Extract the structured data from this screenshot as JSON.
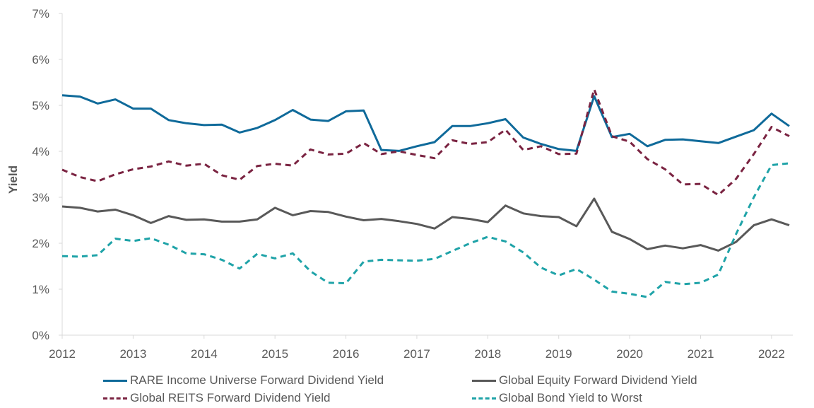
{
  "chart_data": {
    "type": "line",
    "ylabel": "Yield",
    "xlabel": "",
    "title": "",
    "xlim": [
      2012,
      2022.3
    ],
    "ylim": [
      0,
      7
    ],
    "x_ticks": [
      {
        "value": 2012,
        "label": "2012"
      },
      {
        "value": 2013,
        "label": "2013"
      },
      {
        "value": 2014,
        "label": "2014"
      },
      {
        "value": 2015,
        "label": "2015"
      },
      {
        "value": 2016,
        "label": "2016"
      },
      {
        "value": 2017,
        "label": "2017"
      },
      {
        "value": 2018,
        "label": "2018"
      },
      {
        "value": 2019,
        "label": "2019"
      },
      {
        "value": 2020,
        "label": "2020"
      },
      {
        "value": 2021,
        "label": "2021"
      },
      {
        "value": 2022,
        "label": "2022"
      }
    ],
    "y_ticks": [
      {
        "value": 0,
        "label": "0%"
      },
      {
        "value": 1,
        "label": "1%"
      },
      {
        "value": 2,
        "label": "2%"
      },
      {
        "value": 3,
        "label": "3%"
      },
      {
        "value": 4,
        "label": "4%"
      },
      {
        "value": 5,
        "label": "5%"
      },
      {
        "value": 6,
        "label": "6%"
      },
      {
        "value": 7,
        "label": "7%"
      }
    ],
    "grid": false,
    "legend_position": "bottom",
    "x": [
      2012.0,
      2012.25,
      2012.5,
      2012.75,
      2013.0,
      2013.25,
      2013.5,
      2013.75,
      2014.0,
      2014.25,
      2014.5,
      2014.75,
      2015.0,
      2015.25,
      2015.5,
      2015.75,
      2016.0,
      2016.25,
      2016.5,
      2016.75,
      2017.0,
      2017.25,
      2017.5,
      2017.75,
      2018.0,
      2018.25,
      2018.5,
      2018.75,
      2019.0,
      2019.25,
      2019.5,
      2019.75,
      2020.0,
      2020.25,
      2020.5,
      2020.75,
      2021.0,
      2021.25,
      2021.5,
      2021.75,
      2022.0,
      2022.25
    ],
    "series": [
      {
        "name": "RARE Income Universe Forward Dividend Yield",
        "color": "#0F6A9A",
        "dash": "solid",
        "values": [
          5.22,
          5.19,
          5.04,
          5.13,
          4.93,
          4.93,
          4.68,
          4.61,
          4.57,
          4.58,
          4.41,
          4.51,
          4.68,
          4.9,
          4.69,
          4.66,
          4.87,
          4.89,
          4.03,
          4.01,
          4.11,
          4.2,
          4.55,
          4.55,
          4.61,
          4.7,
          4.3,
          4.16,
          4.05,
          4.01,
          5.2,
          4.31,
          4.38,
          4.11,
          4.25,
          4.26,
          4.22,
          4.18,
          4.32,
          4.46,
          4.82,
          4.55
        ]
      },
      {
        "name": "Global Equity Forward Dividend Yield",
        "color": "#595959",
        "dash": "solid",
        "values": [
          2.8,
          2.77,
          2.69,
          2.73,
          2.61,
          2.44,
          2.59,
          2.51,
          2.52,
          2.47,
          2.47,
          2.52,
          2.77,
          2.61,
          2.7,
          2.68,
          2.58,
          2.5,
          2.53,
          2.48,
          2.42,
          2.32,
          2.57,
          2.53,
          2.46,
          2.82,
          2.65,
          2.59,
          2.57,
          2.37,
          2.97,
          2.25,
          2.09,
          1.87,
          1.95,
          1.89,
          1.96,
          1.84,
          2.03,
          2.39,
          2.52,
          2.39
        ]
      },
      {
        "name": "Global REITS Forward Dividend Yield",
        "color": "#7A2341",
        "dash": "dash",
        "values": [
          3.6,
          3.44,
          3.35,
          3.5,
          3.61,
          3.67,
          3.78,
          3.69,
          3.73,
          3.48,
          3.38,
          3.68,
          3.73,
          3.69,
          4.04,
          3.93,
          3.95,
          4.18,
          3.94,
          4.0,
          3.92,
          3.85,
          4.24,
          4.16,
          4.2,
          4.47,
          4.03,
          4.11,
          3.94,
          3.95,
          5.35,
          4.33,
          4.21,
          3.83,
          3.61,
          3.28,
          3.29,
          3.05,
          3.4,
          3.94,
          4.53,
          4.33
        ]
      },
      {
        "name": "Global Bond Yield to Worst",
        "color": "#1FA3A8",
        "dash": "dash",
        "values": [
          1.72,
          1.71,
          1.74,
          2.1,
          2.05,
          2.11,
          1.97,
          1.78,
          1.76,
          1.64,
          1.45,
          1.77,
          1.67,
          1.78,
          1.39,
          1.14,
          1.13,
          1.6,
          1.64,
          1.63,
          1.62,
          1.66,
          1.83,
          2.0,
          2.14,
          2.04,
          1.8,
          1.47,
          1.3,
          1.44,
          1.21,
          0.95,
          0.9,
          0.83,
          1.16,
          1.11,
          1.14,
          1.32,
          2.2,
          3.0,
          3.7,
          3.74
        ]
      }
    ]
  }
}
